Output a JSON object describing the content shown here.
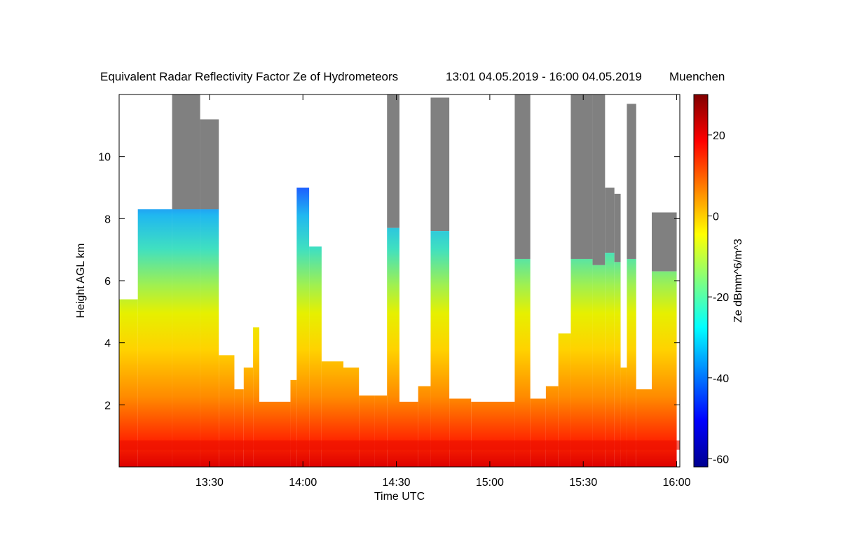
{
  "chart_data": {
    "type": "heatmap",
    "title": "Equivalent Radar Reflectivity Factor Ze of Hydrometeors",
    "time_range": "13:01 04.05.2019 - 16:00 04.05.2019",
    "location": "Muenchen",
    "xlabel": "Time UTC",
    "ylabel": "Height AGL km",
    "xlim": [
      "13:01",
      "16:01"
    ],
    "ylim": [
      0,
      12
    ],
    "x_ticks": [
      "13:30",
      "14:00",
      "14:30",
      "15:00",
      "15:30",
      "16:00"
    ],
    "y_ticks": [
      2,
      4,
      6,
      8,
      10
    ],
    "colorbar": {
      "label": "Ze dBmm^6/m^3",
      "range": [
        -62,
        30
      ],
      "ticks": [
        20,
        0,
        -20,
        -40,
        -60
      ],
      "colormap": "jet"
    },
    "columns": [
      {
        "start": "13:01",
        "end": "13:07",
        "top": 5.4,
        "gray": 0
      },
      {
        "start": "13:07",
        "end": "13:18",
        "top": 8.3,
        "gray": 0
      },
      {
        "start": "13:18",
        "end": "13:27",
        "top": 8.3,
        "gray": 12
      },
      {
        "start": "13:27",
        "end": "13:33",
        "top": 8.3,
        "gray": 11.2
      },
      {
        "start": "13:33",
        "end": "13:38",
        "top": 3.6,
        "gray": 0
      },
      {
        "start": "13:38",
        "end": "13:41",
        "top": 2.5,
        "gray": 0
      },
      {
        "start": "13:41",
        "end": "13:44",
        "top": 3.2,
        "gray": 0
      },
      {
        "start": "13:44",
        "end": "13:46",
        "top": 4.5,
        "gray": 0
      },
      {
        "start": "13:46",
        "end": "13:56",
        "top": 2.1,
        "gray": 0
      },
      {
        "start": "13:56",
        "end": "13:58",
        "top": 2.8,
        "gray": 0
      },
      {
        "start": "13:58",
        "end": "14:02",
        "top": 9.0,
        "gray": 0
      },
      {
        "start": "14:02",
        "end": "14:06",
        "top": 7.1,
        "gray": 0
      },
      {
        "start": "14:06",
        "end": "14:13",
        "top": 3.4,
        "gray": 0
      },
      {
        "start": "14:13",
        "end": "14:18",
        "top": 3.2,
        "gray": 0
      },
      {
        "start": "14:18",
        "end": "14:23",
        "top": 2.3,
        "gray": 0
      },
      {
        "start": "14:23",
        "end": "14:27",
        "top": 2.3,
        "gray": 0
      },
      {
        "start": "14:27",
        "end": "14:31",
        "top": 7.7,
        "gray": 12
      },
      {
        "start": "14:31",
        "end": "14:37",
        "top": 2.1,
        "gray": 0
      },
      {
        "start": "14:37",
        "end": "14:41",
        "top": 2.6,
        "gray": 0
      },
      {
        "start": "14:41",
        "end": "14:47",
        "top": 7.6,
        "gray": 11.9
      },
      {
        "start": "14:47",
        "end": "14:54",
        "top": 2.2,
        "gray": 0
      },
      {
        "start": "14:54",
        "end": "15:08",
        "top": 2.1,
        "gray": 0
      },
      {
        "start": "15:08",
        "end": "15:13",
        "top": 6.7,
        "gray": 12
      },
      {
        "start": "15:13",
        "end": "15:18",
        "top": 2.2,
        "gray": 0
      },
      {
        "start": "15:18",
        "end": "15:22",
        "top": 2.6,
        "gray": 0
      },
      {
        "start": "15:22",
        "end": "15:26",
        "top": 4.3,
        "gray": 0
      },
      {
        "start": "15:26",
        "end": "15:33",
        "top": 6.7,
        "gray": 12
      },
      {
        "start": "15:33",
        "end": "15:37",
        "top": 6.5,
        "gray": 12
      },
      {
        "start": "15:37",
        "end": "15:40",
        "top": 6.9,
        "gray": 9
      },
      {
        "start": "15:40",
        "end": "15:42",
        "top": 6.6,
        "gray": 8.8
      },
      {
        "start": "15:42",
        "end": "15:44",
        "top": 3.2,
        "gray": 0
      },
      {
        "start": "15:44",
        "end": "15:47",
        "top": 6.7,
        "gray": 11.7
      },
      {
        "start": "15:47",
        "end": "15:52",
        "top": 2.5,
        "gray": 0
      },
      {
        "start": "15:52",
        "end": "16:00",
        "top": 6.3,
        "gray": 8.2
      }
    ]
  }
}
